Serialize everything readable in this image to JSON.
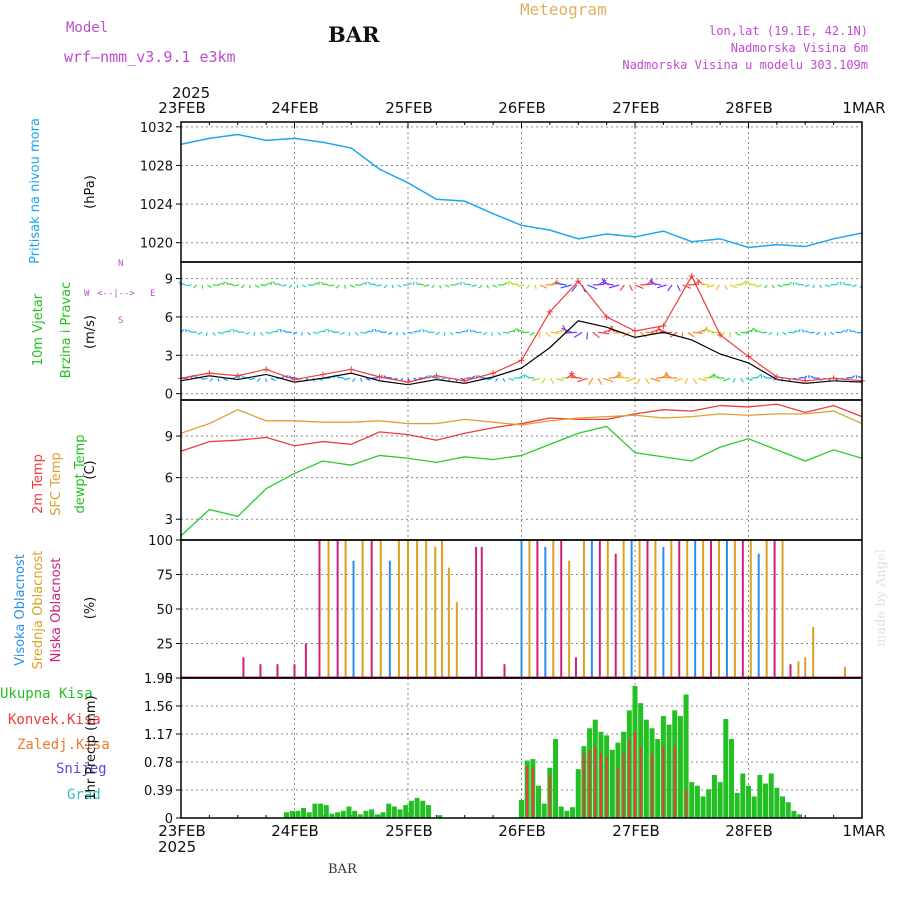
{
  "header": {
    "model_label": "Model",
    "model_name": "wrf—nmm_v3.9.1  e3km",
    "station": "BAR",
    "product": "Meteogram",
    "lonlat": "lon,lat (19.1E, 42.1N)",
    "elevation": "Nadmorska Visina 6m",
    "model_elevation": "Nadmorska Visina u modelu 303.109m",
    "footer_station": "BAR",
    "watermark": "made by Angel"
  },
  "colors": {
    "pressure": "#1ea7ef",
    "t2m": "#ef3b3b",
    "sfc": "#e0a030",
    "dewpt": "#2ccc2c",
    "high_cloud": "#2a8fe6",
    "mid_cloud": "#dda020",
    "low_cloud": "#cc1f7a",
    "total_precip": "#22c022",
    "conv_precip": "#ef3b3b",
    "frozen": "#f07a28",
    "snow": "#5050e0",
    "hail": "#30c0c0",
    "model_text": "#c04ad0",
    "product_text": "#e0b060"
  },
  "chart_data": [
    {
      "id": "pressure",
      "type": "line",
      "title": "Pritisak na nivou mora",
      "ylabel": "(hPa)",
      "ylim": [
        1018,
        1032.5
      ],
      "yticks": [
        "1020",
        "1024",
        "1028",
        "1032"
      ],
      "x_start_label": "2025",
      "x_ticks_top": [
        "23FEB",
        "24FEB",
        "25FEB",
        "26FEB",
        "27FEB",
        "28FEB",
        "1MAR"
      ],
      "x": [
        0,
        0.25,
        0.5,
        0.75,
        1.0,
        1.25,
        1.5,
        1.75,
        2.0,
        2.25,
        2.5,
        2.75,
        3.0,
        3.25,
        3.5,
        3.75,
        4.0,
        4.25,
        4.5,
        4.75,
        5.0,
        5.25,
        5.5,
        5.75,
        6.0
      ],
      "values": [
        1030.2,
        1030.8,
        1031.2,
        1030.6,
        1030.8,
        1030.4,
        1029.8,
        1027.6,
        1026.2,
        1024.5,
        1024.3,
        1023.0,
        1021.8,
        1021.3,
        1020.4,
        1020.9,
        1020.6,
        1021.2,
        1020.1,
        1020.4,
        1019.5,
        1019.8,
        1019.6,
        1020.4,
        1021.0
      ]
    },
    {
      "id": "wind",
      "type": "line",
      "title": "10m Vjetar",
      "subtitle": "Brzina i Pravac",
      "ylabel": "(m/s)",
      "compass": {
        "n": "N",
        "w": "W",
        "e": "E",
        "s": "S",
        "axis_label": "<--|-->"
      },
      "ylim": [
        -0.5,
        10.3
      ],
      "yticks": [
        "0",
        "3",
        "6",
        "9"
      ],
      "x": [
        0,
        0.25,
        0.5,
        0.75,
        1.0,
        1.25,
        1.5,
        1.75,
        2.0,
        2.25,
        2.5,
        2.75,
        3.0,
        3.25,
        3.5,
        3.75,
        4.0,
        4.25,
        4.5,
        4.75,
        5.0,
        5.25,
        5.5,
        5.75,
        6.0
      ],
      "series": [
        {
          "name": "speed",
          "color": "#000000",
          "values": [
            1.0,
            1.4,
            1.1,
            1.5,
            0.9,
            1.2,
            1.6,
            1.0,
            0.7,
            1.1,
            0.8,
            1.3,
            2.0,
            3.6,
            5.7,
            5.2,
            4.4,
            4.8,
            4.2,
            3.1,
            2.4,
            1.1,
            0.8,
            1.0,
            0.9
          ]
        },
        {
          "name": "gust",
          "color": "#ef3b3b",
          "values": [
            1.2,
            1.6,
            1.4,
            1.9,
            1.1,
            1.5,
            1.9,
            1.3,
            0.9,
            1.4,
            1.0,
            1.6,
            2.6,
            6.4,
            8.8,
            6.0,
            4.9,
            5.3,
            9.2,
            4.6,
            2.9,
            1.3,
            1.0,
            1.2,
            1.0
          ]
        }
      ],
      "barb_rows": [
        1.2,
        4.8,
        8.5
      ]
    },
    {
      "id": "temperature",
      "type": "line",
      "labels": [
        "2m Temp",
        "SFC Temp",
        "dewpt Temp"
      ],
      "ylabel": "(C)",
      "ylim": [
        1.5,
        11.6
      ],
      "yticks": [
        "3",
        "6",
        "9"
      ],
      "x": [
        0,
        0.25,
        0.5,
        0.75,
        1.0,
        1.25,
        1.5,
        1.75,
        2.0,
        2.25,
        2.5,
        2.75,
        3.0,
        3.25,
        3.5,
        3.75,
        4.0,
        4.25,
        4.5,
        4.75,
        5.0,
        5.25,
        5.5,
        5.75,
        6.0
      ],
      "series": [
        {
          "name": "2m Temp",
          "values": [
            7.9,
            8.6,
            8.7,
            8.9,
            8.3,
            8.6,
            8.4,
            9.3,
            9.1,
            8.7,
            9.2,
            9.6,
            9.9,
            10.3,
            10.2,
            10.2,
            10.6,
            10.9,
            10.8,
            11.2,
            11.1,
            11.3,
            10.7,
            11.2,
            10.4
          ]
        },
        {
          "name": "SFC Temp",
          "values": [
            9.2,
            9.9,
            10.9,
            10.1,
            10.1,
            10.0,
            10.0,
            10.1,
            9.9,
            9.9,
            10.2,
            10.0,
            9.8,
            10.1,
            10.3,
            10.4,
            10.5,
            10.3,
            10.4,
            10.6,
            10.5,
            10.6,
            10.6,
            10.8,
            9.9
          ]
        },
        {
          "name": "dewpt Temp",
          "values": [
            1.8,
            3.7,
            3.2,
            5.2,
            6.3,
            7.2,
            6.9,
            7.6,
            7.4,
            7.1,
            7.5,
            7.3,
            7.6,
            8.4,
            9.2,
            9.7,
            7.8,
            7.5,
            7.2,
            8.2,
            8.8,
            8.0,
            7.2,
            8.0,
            7.4
          ]
        }
      ]
    },
    {
      "id": "cloud",
      "type": "bar",
      "labels": [
        "Visoka Oblacnost",
        "Srednja Oblacnost",
        "Niska Oblacnost"
      ],
      "ylabel": "(%)",
      "ylim": [
        0,
        100
      ],
      "yticks": [
        "0",
        "25",
        "50",
        "75",
        "100"
      ],
      "bars": [
        {
          "x": 0.55,
          "layer": "low",
          "v": 15
        },
        {
          "x": 0.7,
          "layer": "low",
          "v": 10
        },
        {
          "x": 0.85,
          "layer": "low",
          "v": 10
        },
        {
          "x": 1.0,
          "layer": "low",
          "v": 10
        },
        {
          "x": 1.1,
          "layer": "low",
          "v": 25
        },
        {
          "x": 1.22,
          "layer": "low",
          "v": 100
        },
        {
          "x": 1.3,
          "layer": "mid",
          "v": 100
        },
        {
          "x": 1.38,
          "layer": "low",
          "v": 100
        },
        {
          "x": 1.45,
          "layer": "mid",
          "v": 100
        },
        {
          "x": 1.52,
          "layer": "high",
          "v": 85
        },
        {
          "x": 1.6,
          "layer": "mid",
          "v": 100
        },
        {
          "x": 1.68,
          "layer": "low",
          "v": 100
        },
        {
          "x": 1.76,
          "layer": "mid",
          "v": 100
        },
        {
          "x": 1.84,
          "layer": "high",
          "v": 85
        },
        {
          "x": 1.92,
          "layer": "mid",
          "v": 100
        },
        {
          "x": 2.0,
          "layer": "mid",
          "v": 100
        },
        {
          "x": 2.08,
          "layer": "mid",
          "v": 100
        },
        {
          "x": 2.16,
          "layer": "mid",
          "v": 100
        },
        {
          "x": 2.24,
          "layer": "mid",
          "v": 95
        },
        {
          "x": 2.3,
          "layer": "mid",
          "v": 100
        },
        {
          "x": 2.36,
          "layer": "mid",
          "v": 80
        },
        {
          "x": 2.43,
          "layer": "mid",
          "v": 55
        },
        {
          "x": 2.6,
          "layer": "low",
          "v": 95
        },
        {
          "x": 2.65,
          "layer": "low",
          "v": 95
        },
        {
          "x": 2.85,
          "layer": "low",
          "v": 10
        },
        {
          "x": 3.0,
          "layer": "low",
          "v": 10
        },
        {
          "x": 3.0,
          "layer": "high",
          "v": 100
        },
        {
          "x": 3.07,
          "layer": "mid",
          "v": 100
        },
        {
          "x": 3.14,
          "layer": "low",
          "v": 100
        },
        {
          "x": 3.21,
          "layer": "high",
          "v": 95
        },
        {
          "x": 3.28,
          "layer": "mid",
          "v": 100
        },
        {
          "x": 3.35,
          "layer": "low",
          "v": 100
        },
        {
          "x": 3.42,
          "layer": "mid",
          "v": 85
        },
        {
          "x": 3.48,
          "layer": "low",
          "v": 15
        },
        {
          "x": 3.55,
          "layer": "mid",
          "v": 100
        },
        {
          "x": 3.62,
          "layer": "high",
          "v": 100
        },
        {
          "x": 3.69,
          "layer": "low",
          "v": 100
        },
        {
          "x": 3.76,
          "layer": "mid",
          "v": 100
        },
        {
          "x": 3.83,
          "layer": "low",
          "v": 90
        },
        {
          "x": 3.9,
          "layer": "mid",
          "v": 100
        },
        {
          "x": 3.97,
          "layer": "high",
          "v": 100
        },
        {
          "x": 4.04,
          "layer": "mid",
          "v": 100
        },
        {
          "x": 4.11,
          "layer": "low",
          "v": 100
        },
        {
          "x": 4.18,
          "layer": "mid",
          "v": 100
        },
        {
          "x": 4.25,
          "layer": "high",
          "v": 95
        },
        {
          "x": 4.32,
          "layer": "mid",
          "v": 100
        },
        {
          "x": 4.39,
          "layer": "low",
          "v": 100
        },
        {
          "x": 4.46,
          "layer": "mid",
          "v": 100
        },
        {
          "x": 4.53,
          "layer": "high",
          "v": 100
        },
        {
          "x": 4.6,
          "layer": "mid",
          "v": 100
        },
        {
          "x": 4.67,
          "layer": "low",
          "v": 100
        },
        {
          "x": 4.74,
          "layer": "mid",
          "v": 100
        },
        {
          "x": 4.81,
          "layer": "high",
          "v": 100
        },
        {
          "x": 4.88,
          "layer": "mid",
          "v": 100
        },
        {
          "x": 4.95,
          "layer": "low",
          "v": 100
        },
        {
          "x": 5.02,
          "layer": "mid",
          "v": 100
        },
        {
          "x": 5.09,
          "layer": "high",
          "v": 90
        },
        {
          "x": 5.16,
          "layer": "mid",
          "v": 100
        },
        {
          "x": 5.23,
          "layer": "low",
          "v": 100
        },
        {
          "x": 5.3,
          "layer": "mid",
          "v": 100
        },
        {
          "x": 5.37,
          "layer": "low",
          "v": 10
        },
        {
          "x": 5.44,
          "layer": "mid",
          "v": 12
        },
        {
          "x": 5.5,
          "layer": "mid",
          "v": 15
        },
        {
          "x": 5.57,
          "layer": "mid",
          "v": 37
        },
        {
          "x": 5.85,
          "layer": "mid",
          "v": 8
        }
      ]
    },
    {
      "id": "precip",
      "type": "bar",
      "labels": [
        "Ukupna Kisa",
        "Konvek.Kisa",
        "Zaledj.Kisa",
        "Snijeg",
        "Grad"
      ],
      "ylabel": "1hr Precip (mm)",
      "ylim": [
        0,
        1.95
      ],
      "yticks": [
        "0",
        "0.39",
        "0.78",
        "1.17",
        "1.56",
        "1.95"
      ],
      "x_start_label": "2025",
      "x_ticks_bottom": [
        "23FEB",
        "24FEB",
        "25FEB",
        "26FEB",
        "27FEB",
        "28FEB",
        "1MAR"
      ],
      "total": [
        {
          "x": 0.93,
          "v": 0.08
        },
        {
          "x": 0.98,
          "v": 0.1
        },
        {
          "x": 1.03,
          "v": 0.1
        },
        {
          "x": 1.08,
          "v": 0.14
        },
        {
          "x": 1.13,
          "v": 0.08
        },
        {
          "x": 1.18,
          "v": 0.2
        },
        {
          "x": 1.23,
          "v": 0.2
        },
        {
          "x": 1.28,
          "v": 0.18
        },
        {
          "x": 1.33,
          "v": 0.06
        },
        {
          "x": 1.38,
          "v": 0.08
        },
        {
          "x": 1.43,
          "v": 0.1
        },
        {
          "x": 1.48,
          "v": 0.16
        },
        {
          "x": 1.53,
          "v": 0.1
        },
        {
          "x": 1.58,
          "v": 0.05
        },
        {
          "x": 1.63,
          "v": 0.1
        },
        {
          "x": 1.68,
          "v": 0.12
        },
        {
          "x": 1.73,
          "v": 0.05
        },
        {
          "x": 1.78,
          "v": 0.08
        },
        {
          "x": 1.83,
          "v": 0.2
        },
        {
          "x": 1.88,
          "v": 0.16
        },
        {
          "x": 1.93,
          "v": 0.12
        },
        {
          "x": 1.98,
          "v": 0.18
        },
        {
          "x": 2.03,
          "v": 0.24
        },
        {
          "x": 2.08,
          "v": 0.28
        },
        {
          "x": 2.13,
          "v": 0.24
        },
        {
          "x": 2.18,
          "v": 0.18
        },
        {
          "x": 2.28,
          "v": 0.04
        },
        {
          "x": 3.0,
          "v": 0.25
        },
        {
          "x": 3.05,
          "v": 0.8
        },
        {
          "x": 3.1,
          "v": 0.82
        },
        {
          "x": 3.15,
          "v": 0.45
        },
        {
          "x": 3.2,
          "v": 0.2
        },
        {
          "x": 3.25,
          "v": 0.7
        },
        {
          "x": 3.3,
          "v": 1.1
        },
        {
          "x": 3.35,
          "v": 0.16
        },
        {
          "x": 3.4,
          "v": 0.1
        },
        {
          "x": 3.45,
          "v": 0.15
        },
        {
          "x": 3.5,
          "v": 0.68
        },
        {
          "x": 3.55,
          "v": 1.0
        },
        {
          "x": 3.6,
          "v": 1.25
        },
        {
          "x": 3.65,
          "v": 1.37
        },
        {
          "x": 3.7,
          "v": 1.2
        },
        {
          "x": 3.75,
          "v": 1.15
        },
        {
          "x": 3.8,
          "v": 0.95
        },
        {
          "x": 3.85,
          "v": 1.05
        },
        {
          "x": 3.9,
          "v": 1.2
        },
        {
          "x": 3.95,
          "v": 1.5
        },
        {
          "x": 4.0,
          "v": 1.84
        },
        {
          "x": 4.05,
          "v": 1.6
        },
        {
          "x": 4.1,
          "v": 1.37
        },
        {
          "x": 4.15,
          "v": 1.25
        },
        {
          "x": 4.2,
          "v": 1.1
        },
        {
          "x": 4.25,
          "v": 1.42
        },
        {
          "x": 4.3,
          "v": 1.3
        },
        {
          "x": 4.35,
          "v": 1.5
        },
        {
          "x": 4.4,
          "v": 1.42
        },
        {
          "x": 4.45,
          "v": 1.72
        },
        {
          "x": 4.5,
          "v": 0.5
        },
        {
          "x": 4.55,
          "v": 0.45
        },
        {
          "x": 4.6,
          "v": 0.3
        },
        {
          "x": 4.65,
          "v": 0.4
        },
        {
          "x": 4.7,
          "v": 0.6
        },
        {
          "x": 4.75,
          "v": 0.5
        },
        {
          "x": 4.8,
          "v": 1.38
        },
        {
          "x": 4.85,
          "v": 1.1
        },
        {
          "x": 4.9,
          "v": 0.35
        },
        {
          "x": 4.95,
          "v": 0.62
        },
        {
          "x": 5.0,
          "v": 0.45
        },
        {
          "x": 5.05,
          "v": 0.3
        },
        {
          "x": 5.1,
          "v": 0.6
        },
        {
          "x": 5.15,
          "v": 0.48
        },
        {
          "x": 5.2,
          "v": 0.62
        },
        {
          "x": 5.25,
          "v": 0.42
        },
        {
          "x": 5.3,
          "v": 0.3
        },
        {
          "x": 5.35,
          "v": 0.22
        },
        {
          "x": 5.4,
          "v": 0.1
        },
        {
          "x": 5.45,
          "v": 0.05
        }
      ],
      "convective": [
        {
          "x": 3.05,
          "v": 0.72
        },
        {
          "x": 3.1,
          "v": 0.7
        },
        {
          "x": 3.25,
          "v": 0.6
        },
        {
          "x": 3.55,
          "v": 0.9
        },
        {
          "x": 3.6,
          "v": 0.95
        },
        {
          "x": 3.65,
          "v": 1.0
        },
        {
          "x": 3.7,
          "v": 0.9
        },
        {
          "x": 3.75,
          "v": 0.85
        },
        {
          "x": 3.85,
          "v": 0.7
        },
        {
          "x": 3.9,
          "v": 0.9
        },
        {
          "x": 3.95,
          "v": 1.1
        },
        {
          "x": 4.0,
          "v": 1.2
        },
        {
          "x": 4.05,
          "v": 1.0
        },
        {
          "x": 4.15,
          "v": 0.9
        },
        {
          "x": 4.25,
          "v": 1.0
        },
        {
          "x": 4.35,
          "v": 1.0
        },
        {
          "x": 4.45,
          "v": 0.4
        }
      ]
    }
  ]
}
